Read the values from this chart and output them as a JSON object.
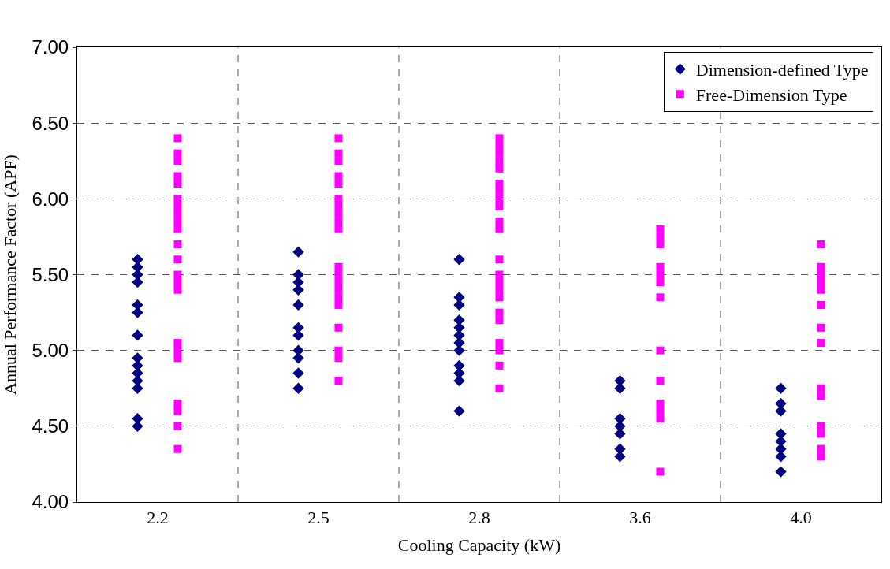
{
  "chart_data": {
    "type": "scatter",
    "xlabel": "Cooling Capacity (kW)",
    "ylabel": "Annual Performance Factor (APF)",
    "categories": [
      "2.2",
      "2.5",
      "2.8",
      "3.6",
      "4.0"
    ],
    "ylim": [
      4.0,
      7.0
    ],
    "yticks": [
      {
        "value": 4.0,
        "label": "4.00"
      },
      {
        "value": 4.5,
        "label": "4.50"
      },
      {
        "value": 5.0,
        "label": "5.00"
      },
      {
        "value": 5.5,
        "label": "5.50"
      },
      {
        "value": 6.0,
        "label": "6.00"
      },
      {
        "value": 6.5,
        "label": "6.50"
      },
      {
        "value": 7.0,
        "label": "7.00"
      }
    ],
    "grid": true,
    "legend": "top right",
    "series": [
      {
        "name": "Dimension-defined Type",
        "color": "#000080",
        "marker": "diamond",
        "x": [
          "2.2",
          "2.2",
          "2.2",
          "2.2",
          "2.2",
          "2.2",
          "2.2",
          "2.2",
          "2.2",
          "2.2",
          "2.2",
          "2.2",
          "2.2",
          "2.2",
          "2.5",
          "2.5",
          "2.5",
          "2.5",
          "2.5",
          "2.5",
          "2.5",
          "2.5",
          "2.5",
          "2.5",
          "2.5",
          "2.8",
          "2.8",
          "2.8",
          "2.8",
          "2.8",
          "2.8",
          "2.8",
          "2.8",
          "2.8",
          "2.8",
          "2.8",
          "2.8",
          "3.6",
          "3.6",
          "3.6",
          "3.6",
          "3.6",
          "3.6",
          "3.6",
          "4.0",
          "4.0",
          "4.0",
          "4.0",
          "4.0",
          "4.0",
          "4.0",
          "4.0"
        ],
        "values": [
          5.6,
          5.55,
          5.5,
          5.45,
          5.3,
          5.25,
          5.1,
          4.95,
          4.9,
          4.85,
          4.8,
          4.75,
          4.55,
          4.5,
          5.65,
          5.5,
          5.45,
          5.4,
          5.3,
          5.15,
          5.1,
          5.0,
          4.95,
          4.85,
          4.75,
          5.6,
          5.35,
          5.3,
          5.2,
          5.15,
          5.1,
          5.05,
          5.0,
          4.9,
          4.85,
          4.8,
          4.6,
          4.8,
          4.75,
          4.55,
          4.5,
          4.45,
          4.35,
          4.3,
          4.75,
          4.65,
          4.6,
          4.45,
          4.4,
          4.35,
          4.3,
          4.2
        ]
      },
      {
        "name": "Free-Dimension Type",
        "color": "#ff00ff",
        "marker": "square",
        "x": [
          "2.2",
          "2.2",
          "2.2",
          "2.2",
          "2.2",
          "2.2",
          "2.2",
          "2.2",
          "2.2",
          "2.2",
          "2.2",
          "2.2",
          "2.2",
          "2.2",
          "2.2",
          "2.2",
          "2.2",
          "2.2",
          "2.2",
          "2.2",
          "2.2",
          "2.2",
          "2.5",
          "2.5",
          "2.5",
          "2.5",
          "2.5",
          "2.5",
          "2.5",
          "2.5",
          "2.5",
          "2.5",
          "2.5",
          "2.5",
          "2.5",
          "2.5",
          "2.5",
          "2.5",
          "2.5",
          "2.5",
          "2.5",
          "2.5",
          "2.8",
          "2.8",
          "2.8",
          "2.8",
          "2.8",
          "2.8",
          "2.8",
          "2.8",
          "2.8",
          "2.8",
          "2.8",
          "2.8",
          "2.8",
          "2.8",
          "2.8",
          "2.8",
          "2.8",
          "2.8",
          "2.8",
          "2.8",
          "2.8",
          "2.8",
          "3.6",
          "3.6",
          "3.6",
          "3.6",
          "3.6",
          "3.6",
          "3.6",
          "3.6",
          "3.6",
          "3.6",
          "3.6",
          "3.6",
          "3.6",
          "4.0",
          "4.0",
          "4.0",
          "4.0",
          "4.0",
          "4.0",
          "4.0",
          "4.0",
          "4.0",
          "4.0",
          "4.0",
          "4.0",
          "4.0",
          "4.0"
        ],
        "values": [
          6.4,
          6.3,
          6.25,
          6.15,
          6.1,
          6.0,
          5.95,
          5.9,
          5.85,
          5.8,
          5.7,
          5.6,
          5.5,
          5.45,
          5.4,
          5.05,
          5.0,
          4.95,
          4.65,
          4.6,
          4.5,
          4.35,
          6.4,
          6.3,
          6.25,
          6.15,
          6.1,
          6.0,
          5.95,
          5.9,
          5.85,
          5.8,
          5.55,
          5.5,
          5.45,
          5.4,
          5.35,
          5.3,
          5.15,
          5.0,
          4.95,
          4.8,
          6.4,
          6.35,
          6.3,
          6.25,
          6.2,
          6.1,
          6.05,
          6.0,
          5.95,
          5.85,
          5.8,
          5.6,
          5.5,
          5.45,
          5.4,
          5.35,
          5.25,
          5.2,
          5.05,
          5.0,
          4.9,
          4.75,
          5.8,
          5.75,
          5.7,
          5.55,
          5.5,
          5.45,
          5.35,
          5.0,
          4.8,
          4.65,
          4.6,
          4.55,
          4.2,
          5.7,
          5.55,
          5.5,
          5.45,
          5.4,
          5.3,
          5.15,
          5.05,
          4.75,
          4.7,
          4.5,
          4.45,
          4.35,
          4.3
        ]
      }
    ]
  }
}
